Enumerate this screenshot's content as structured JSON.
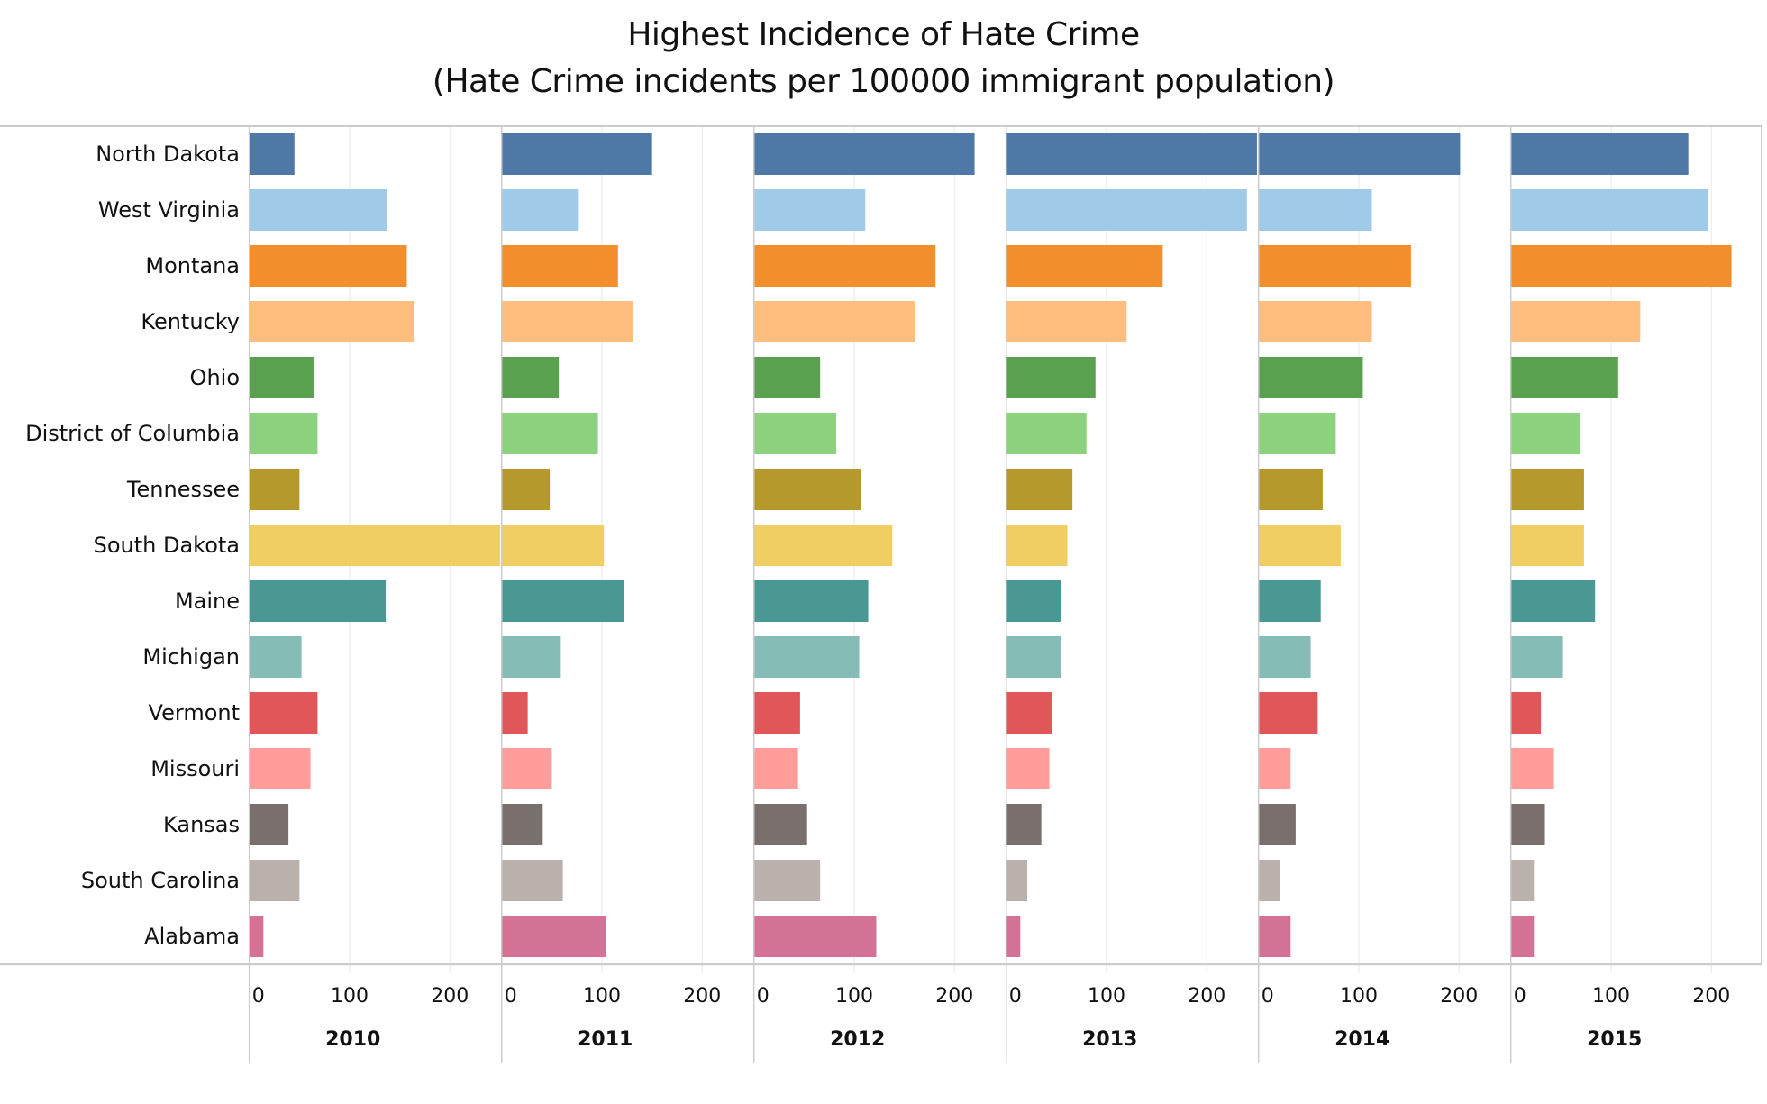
{
  "chart_data": {
    "type": "bar",
    "orientation": "horizontal",
    "layout": "small-multiples by year",
    "title": "Highest Incidence of Hate Crime",
    "subtitle": "(Hate Crime incidents per 100000 immigrant population)",
    "xlabel": "",
    "ylabel": "",
    "xlim": [
      0,
      250
    ],
    "x_ticks": [
      "0",
      "100",
      "200"
    ],
    "x_tick_values": [
      0,
      100,
      200
    ],
    "grid": true,
    "legend": "none",
    "categories": [
      "North Dakota",
      "West Virginia",
      "Montana",
      "Kentucky",
      "Ohio",
      "District of Columbia",
      "Tennessee",
      "South Dakota",
      "Maine",
      "Michigan",
      "Vermont",
      "Missouri",
      "Kansas",
      "South Carolina",
      "Alabama"
    ],
    "colors": [
      "#4e79a7",
      "#a0cbe8",
      "#f28e2b",
      "#ffbe7d",
      "#59a14f",
      "#8cd17d",
      "#b6992d",
      "#f1ce63",
      "#499894",
      "#86bcb6",
      "#e15759",
      "#ff9d9a",
      "#79706e",
      "#bab0ac",
      "#d37295"
    ],
    "panels": [
      {
        "name": "2010",
        "values": [
          45,
          137,
          157,
          164,
          64,
          68,
          50,
          250,
          136,
          52,
          68,
          61,
          39,
          50,
          14
        ],
        "clipped": [
          "South Dakota"
        ]
      },
      {
        "name": "2011",
        "values": [
          150,
          77,
          116,
          131,
          57,
          96,
          48,
          102,
          122,
          59,
          26,
          50,
          41,
          61,
          104
        ]
      },
      {
        "name": "2012",
        "values": [
          220,
          111,
          181,
          161,
          66,
          82,
          107,
          138,
          114,
          105,
          46,
          44,
          53,
          66,
          122
        ]
      },
      {
        "name": "2013",
        "values": [
          250,
          240,
          156,
          120,
          89,
          80,
          66,
          61,
          55,
          55,
          46,
          43,
          35,
          21,
          14
        ],
        "clipped": [
          "North Dakota"
        ]
      },
      {
        "name": "2014",
        "values": [
          201,
          113,
          152,
          113,
          104,
          77,
          64,
          82,
          62,
          52,
          59,
          32,
          37,
          21,
          32
        ]
      },
      {
        "name": "2015",
        "values": [
          177,
          197,
          220,
          129,
          107,
          69,
          73,
          73,
          84,
          52,
          30,
          43,
          34,
          23,
          23
        ]
      }
    ]
  },
  "colors": {
    "gridline": "#efefef",
    "border": "#cccccc",
    "text": "#111111"
  }
}
